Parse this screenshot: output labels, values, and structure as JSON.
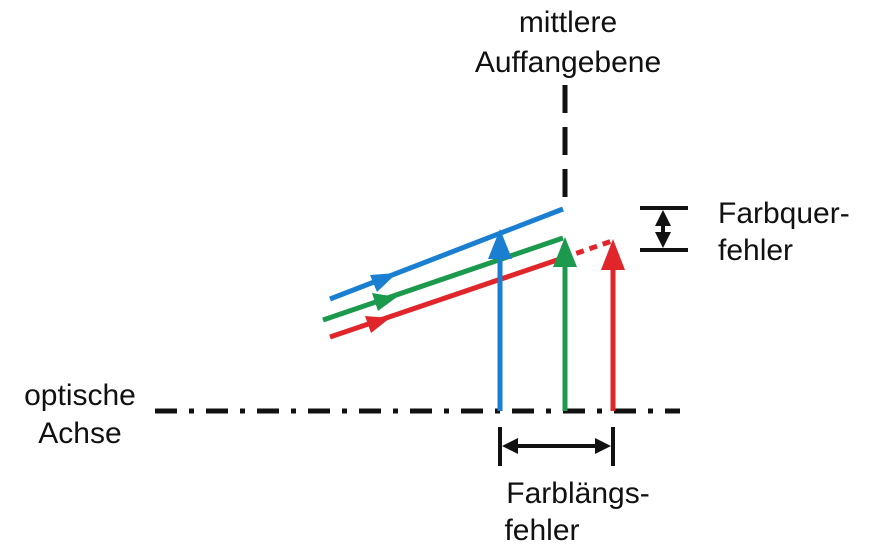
{
  "labels": {
    "plane_line1": "mittlere",
    "plane_line2": "Auffangebene",
    "lateral_line1": "Farbquer-",
    "lateral_line2": "fehler",
    "longitudinal_line1": "Farblängs-",
    "longitudinal_line2": "fehler",
    "axis_line1": "optische",
    "axis_line2": "Achse"
  },
  "colors": {
    "blue": "#1a7fd0",
    "green": "#1b9a4e",
    "red": "#e0262a",
    "black": "#111111"
  }
}
